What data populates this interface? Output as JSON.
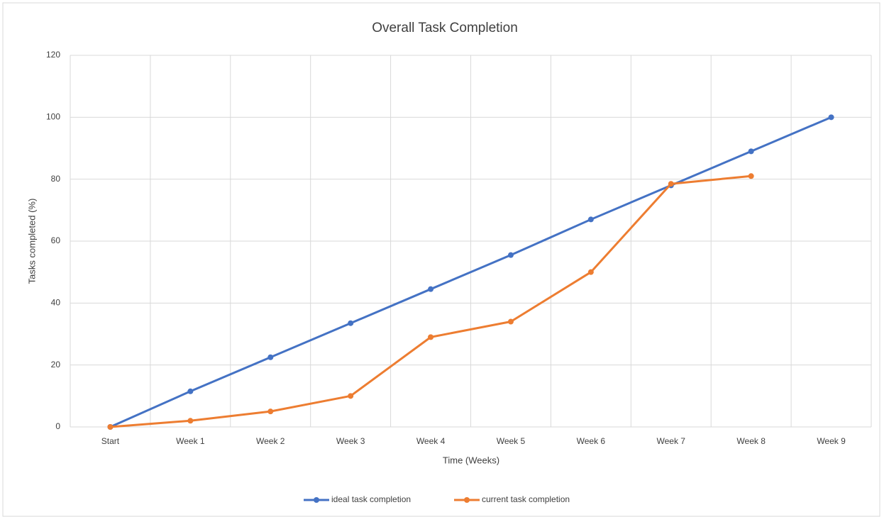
{
  "chart_data": {
    "type": "line",
    "title": "Overall Task Completion",
    "x_label": "Time (Weeks)",
    "y_label": "Tasks completed (%)",
    "categories": [
      "Start",
      "Week 1",
      "Week 2",
      "Week 3",
      "Week 4",
      "Week 5",
      "Week 6",
      "Week 7",
      "Week 8",
      "Week 9"
    ],
    "series": [
      {
        "name": "ideal task completion",
        "color": "#4472c4",
        "values": [
          0,
          11.5,
          22.5,
          33.5,
          44.5,
          55.5,
          67,
          78,
          89,
          100
        ]
      },
      {
        "name": "current task completion",
        "color": "#ed7d31",
        "values": [
          0,
          2,
          5,
          10,
          29,
          34,
          50,
          78.5,
          81,
          null
        ]
      }
    ],
    "ylim": [
      0,
      120
    ],
    "yticks": [
      0,
      20,
      40,
      60,
      80,
      100,
      120
    ],
    "grid": true,
    "legend": "bottom"
  }
}
